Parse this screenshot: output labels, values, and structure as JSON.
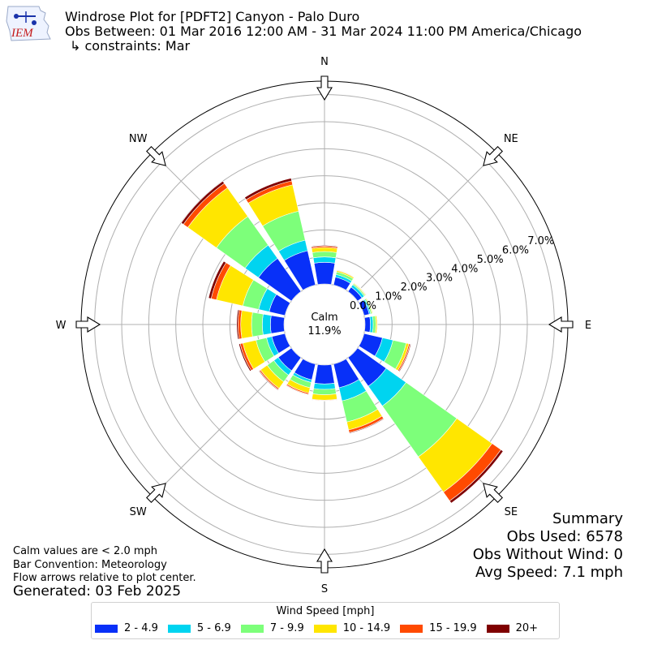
{
  "header": {
    "title": "Windrose Plot for [PDFT2] Canyon - Palo Duro",
    "obs_between": "Obs Between: 01 Mar 2016 12:00 AM - 31 Mar 2024 11:00 PM America/Chicago",
    "constraints": "↳ constraints: Mar"
  },
  "logo": {
    "text": "IEM",
    "icon": "iem-logo-icon"
  },
  "notes": {
    "calm": "Calm values are < 2.0 mph",
    "convention": "Bar Convention: Meteorology",
    "flow": "Flow arrows relative to plot center.",
    "generated": "Generated: 03 Feb 2025"
  },
  "summary": {
    "heading": "Summary",
    "obs_used": "Obs Used: 6578",
    "obs_without_wind": "Obs Without Wind: 0",
    "avg_speed": "Avg Speed: 7.1 mph"
  },
  "chart_data": {
    "type": "windrose",
    "center_label": "Calm",
    "calm_label": "11.9%",
    "calm_percent": 11.9,
    "direction_labels": [
      "N",
      "NE",
      "E",
      "SE",
      "S",
      "SW",
      "W",
      "NW"
    ],
    "radial_tick_labels": [
      "0.0%",
      "1.0%",
      "2.0%",
      "3.0%",
      "4.0%",
      "5.0%",
      "6.0%",
      "7.0%"
    ],
    "radial_range": [
      0,
      7.5
    ],
    "grid": true,
    "sectors": [
      "N",
      "NNE",
      "NE",
      "ENE",
      "E",
      "ESE",
      "SE",
      "SSE",
      "S",
      "SSW",
      "SW",
      "WSW",
      "W",
      "WNW",
      "NW",
      "NNW"
    ],
    "legend": {
      "title": "Wind Speed [mph]",
      "placement": "bottom",
      "bins": [
        {
          "label": "2 - 4.9",
          "color": "#0830f8"
        },
        {
          "label": "5 - 6.9",
          "color": "#00d4f0"
        },
        {
          "label": "7 - 9.9",
          "color": "#7dff7a"
        },
        {
          "label": "10 - 14.9",
          "color": "#ffe600"
        },
        {
          "label": "15 - 19.9",
          "color": "#ff4a00"
        },
        {
          "label": "20+",
          "color": "#7f0000"
        }
      ]
    },
    "series": [
      {
        "name": "2 - 4.9",
        "values": [
          0.8,
          0.3,
          0.2,
          0.2,
          0.2,
          0.7,
          1.3,
          0.9,
          0.7,
          0.6,
          0.6,
          0.5,
          0.5,
          0.6,
          1.5,
          1.3
        ]
      },
      {
        "name": "5 - 6.9",
        "values": [
          0.2,
          0.1,
          0.1,
          0.05,
          0.1,
          0.4,
          0.9,
          0.5,
          0.2,
          0.1,
          0.2,
          0.2,
          0.3,
          0.4,
          0.6,
          0.4
        ]
      },
      {
        "name": "7 - 9.9",
        "values": [
          0.2,
          0.1,
          0.05,
          0.05,
          0.1,
          0.5,
          2.3,
          0.8,
          0.2,
          0.2,
          0.3,
          0.4,
          0.4,
          0.6,
          1.3,
          1.1
        ]
      },
      {
        "name": "10 - 14.9",
        "values": [
          0.15,
          0.05,
          0.03,
          0.03,
          0.05,
          0.1,
          1.6,
          0.3,
          0.2,
          0.2,
          0.3,
          0.5,
          0.4,
          1.0,
          1.3,
          1.0
        ]
      },
      {
        "name": "15 - 19.9",
        "values": [
          0.05,
          0.02,
          0.02,
          0.0,
          0.01,
          0.05,
          0.4,
          0.1,
          0.02,
          0.05,
          0.05,
          0.1,
          0.1,
          0.2,
          0.2,
          0.15
        ]
      },
      {
        "name": "20+",
        "values": [
          0.03,
          0.01,
          0.01,
          0.0,
          0.0,
          0.03,
          0.1,
          0.03,
          0.01,
          0.02,
          0.03,
          0.05,
          0.05,
          0.1,
          0.1,
          0.1
        ]
      }
    ]
  }
}
